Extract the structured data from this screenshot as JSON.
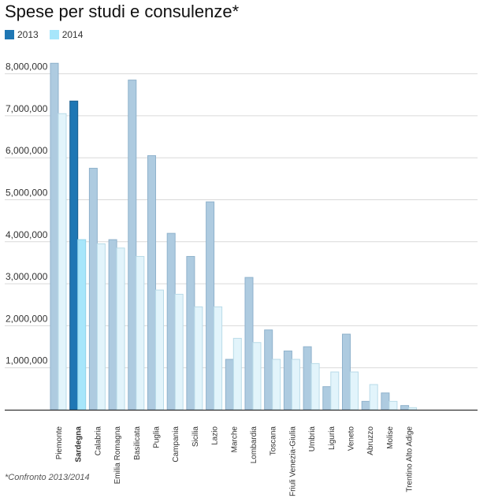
{
  "title": "Spese per studi e consulenze*",
  "footnote": "*Confronto 2013/2014",
  "colors": {
    "s2013": "#aecbe0",
    "s2013_highlight": "#1f77b4",
    "s2014": "#e2f4fb",
    "s2014_highlight": "#a7e6fb",
    "bar_stroke": "#8fb2cc",
    "bar_stroke_2014": "#b9dbe8",
    "grid": "#d9d9d9",
    "axis": "#333333"
  },
  "chart_data": {
    "type": "bar",
    "highlight_category": "Sardegna",
    "categories": [
      "Piemonte",
      "Sardegna",
      "Calabria",
      "Emilia Romagna",
      "Basilicata",
      "Puglia",
      "Campania",
      "Sicilia",
      "Lazio",
      "Marche",
      "Lombardia",
      "Toscana",
      "Friuli Venezia-Giulia",
      "Umbria",
      "Liguria",
      "Veneto",
      "Abruzzo",
      "Molise",
      "Trentino Alto Adige"
    ],
    "series": [
      {
        "name": "2013",
        "values": [
          8250000,
          7350000,
          5750000,
          4050000,
          7850000,
          6050000,
          4200000,
          3650000,
          4950000,
          1200000,
          3150000,
          1900000,
          1400000,
          1500000,
          550000,
          1800000,
          200000,
          400000,
          100000
        ]
      },
      {
        "name": "2014",
        "values": [
          7050000,
          4050000,
          3950000,
          3850000,
          3650000,
          2850000,
          2750000,
          2450000,
          2450000,
          1700000,
          1600000,
          1200000,
          1200000,
          1100000,
          900000,
          900000,
          600000,
          200000,
          50000
        ]
      }
    ],
    "ylim": [
      0,
      8500000
    ],
    "yticks": [
      "1,000,000",
      "2,000,000",
      "3,000,000",
      "4,000,000",
      "5,000,000",
      "6,000,000",
      "7,000,000",
      "8,000,000"
    ],
    "ytick_values": [
      1000000,
      2000000,
      3000000,
      4000000,
      5000000,
      6000000,
      7000000,
      8000000
    ],
    "grid": true,
    "legend": "top-left",
    "xlabel": "",
    "ylabel": ""
  }
}
